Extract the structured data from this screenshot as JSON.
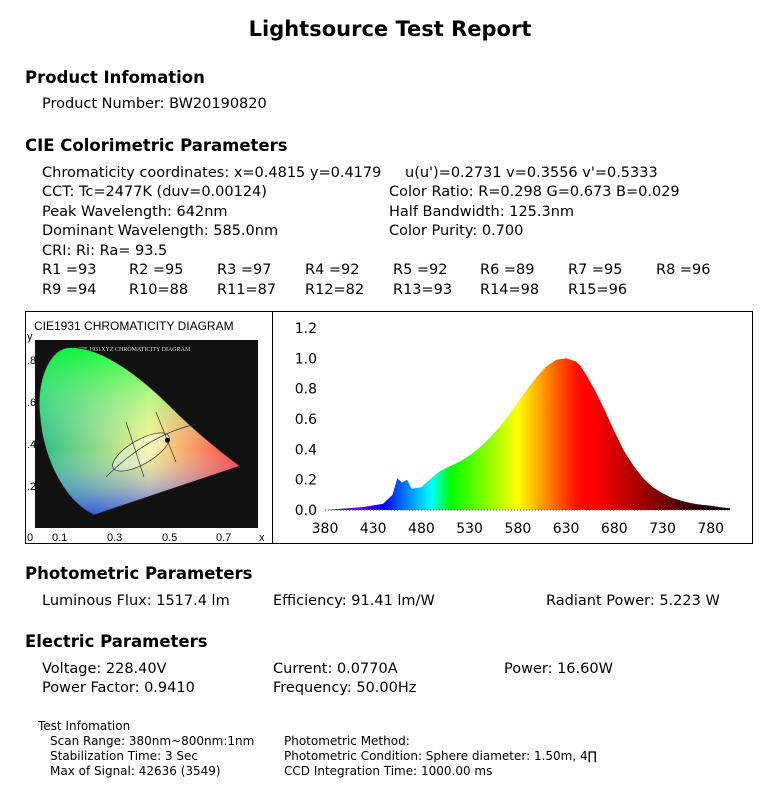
{
  "title": "Lightsource Test Report",
  "product": {
    "heading": "Product Infomation",
    "number": "Product Number: BW20190820"
  },
  "cie": {
    "heading": "CIE Colorimetric Parameters",
    "chromaticity": "Chromaticity coordinates: x=0.4815 y=0.4179",
    "uv": "u(u')=0.2731 v=0.3556 v'=0.5333",
    "cct": "CCT: Tc=2477K (duv=0.00124)",
    "color_ratio": "Color Ratio: R=0.298  G=0.673  B=0.029",
    "peak": "Peak Wavelength: 642nm",
    "half_bandwidth": "Half Bandwidth: 125.3nm",
    "dominant": "Dominant Wavelength: 585.0nm",
    "purity": "Color Purity: 0.700",
    "cri": "CRI: Ri: Ra= 93.5",
    "ri_row1": [
      "R1 =93",
      "R2 =95",
      "R3 =97",
      "R4 =92",
      "R5 =92",
      "R6 =89",
      "R7 =95",
      "R8 =96"
    ],
    "ri_row2": [
      "R9 =94",
      "R10=88",
      "R11=87",
      "R12=82",
      "R13=93",
      "R14=98",
      "R15=96"
    ]
  },
  "cie_diagram": {
    "title": "CIE1931 CHROMATICITY DIAGRAM",
    "inner_title": "CIE 1931XYZ CHROMATICITY DIAGRAM",
    "y_axis_letter": "y",
    "x_axis_letter": "x",
    "y_ticks": [
      ".8",
      ".6",
      ".4",
      ".2"
    ],
    "x_ticks": [
      "0",
      "0.1",
      "0.3",
      "0.5",
      "0.7"
    ],
    "point": {
      "x": 0.4815,
      "y": 0.4179
    }
  },
  "chart_data": {
    "type": "area",
    "title": "",
    "xlabel": "",
    "ylabel": "",
    "xlim": [
      380,
      800
    ],
    "ylim": [
      0,
      1.2
    ],
    "x_ticks": [
      "380",
      "430",
      "480",
      "530",
      "580",
      "630",
      "680",
      "730",
      "780"
    ],
    "y_ticks": [
      "1.2",
      "1.0",
      "0.8",
      "0.6",
      "0.4",
      "0.2",
      "0.0"
    ],
    "x": [
      380,
      390,
      400,
      410,
      420,
      430,
      440,
      450,
      455,
      460,
      465,
      470,
      480,
      490,
      500,
      510,
      520,
      530,
      540,
      550,
      560,
      570,
      580,
      590,
      600,
      610,
      620,
      630,
      640,
      645,
      650,
      660,
      670,
      680,
      690,
      700,
      710,
      720,
      730,
      740,
      750,
      760,
      770,
      780,
      790,
      800
    ],
    "values": [
      0.0,
      0.005,
      0.01,
      0.015,
      0.02,
      0.03,
      0.04,
      0.1,
      0.21,
      0.18,
      0.2,
      0.14,
      0.15,
      0.21,
      0.26,
      0.29,
      0.32,
      0.36,
      0.41,
      0.47,
      0.54,
      0.62,
      0.71,
      0.8,
      0.88,
      0.95,
      0.99,
      1.0,
      0.98,
      0.95,
      0.9,
      0.79,
      0.66,
      0.52,
      0.39,
      0.29,
      0.21,
      0.15,
      0.11,
      0.08,
      0.06,
      0.045,
      0.035,
      0.028,
      0.018,
      0.012
    ],
    "grid": false,
    "legend": "none"
  },
  "photometric": {
    "heading": "Photometric Parameters",
    "flux": "Luminous Flux: 1517.4 lm",
    "efficiency": "Efficiency: 91.41 lm/W",
    "radiant": "Radiant Power: 5.223  W"
  },
  "electric": {
    "heading": "Electric Parameters",
    "voltage": "Voltage: 228.40V",
    "current": "Current: 0.0770A",
    "power": "Power: 16.60W",
    "pf": "Power Factor: 0.9410",
    "frequency": "Frequency: 50.00Hz"
  },
  "test_info": {
    "heading": "Test Infomation",
    "scan_range": "Scan Range: 380nm~800nm:1nm",
    "stabilization": "Stabilization Time: 3 Sec",
    "max_signal": "Max of Signal: 42636 (3549)",
    "method": "Photometric Method:",
    "condition": "Photometric Condition: Sphere diameter: 1.50m, 4∏",
    "ccd": "CCD Integration Time: 1000.00 ms"
  }
}
